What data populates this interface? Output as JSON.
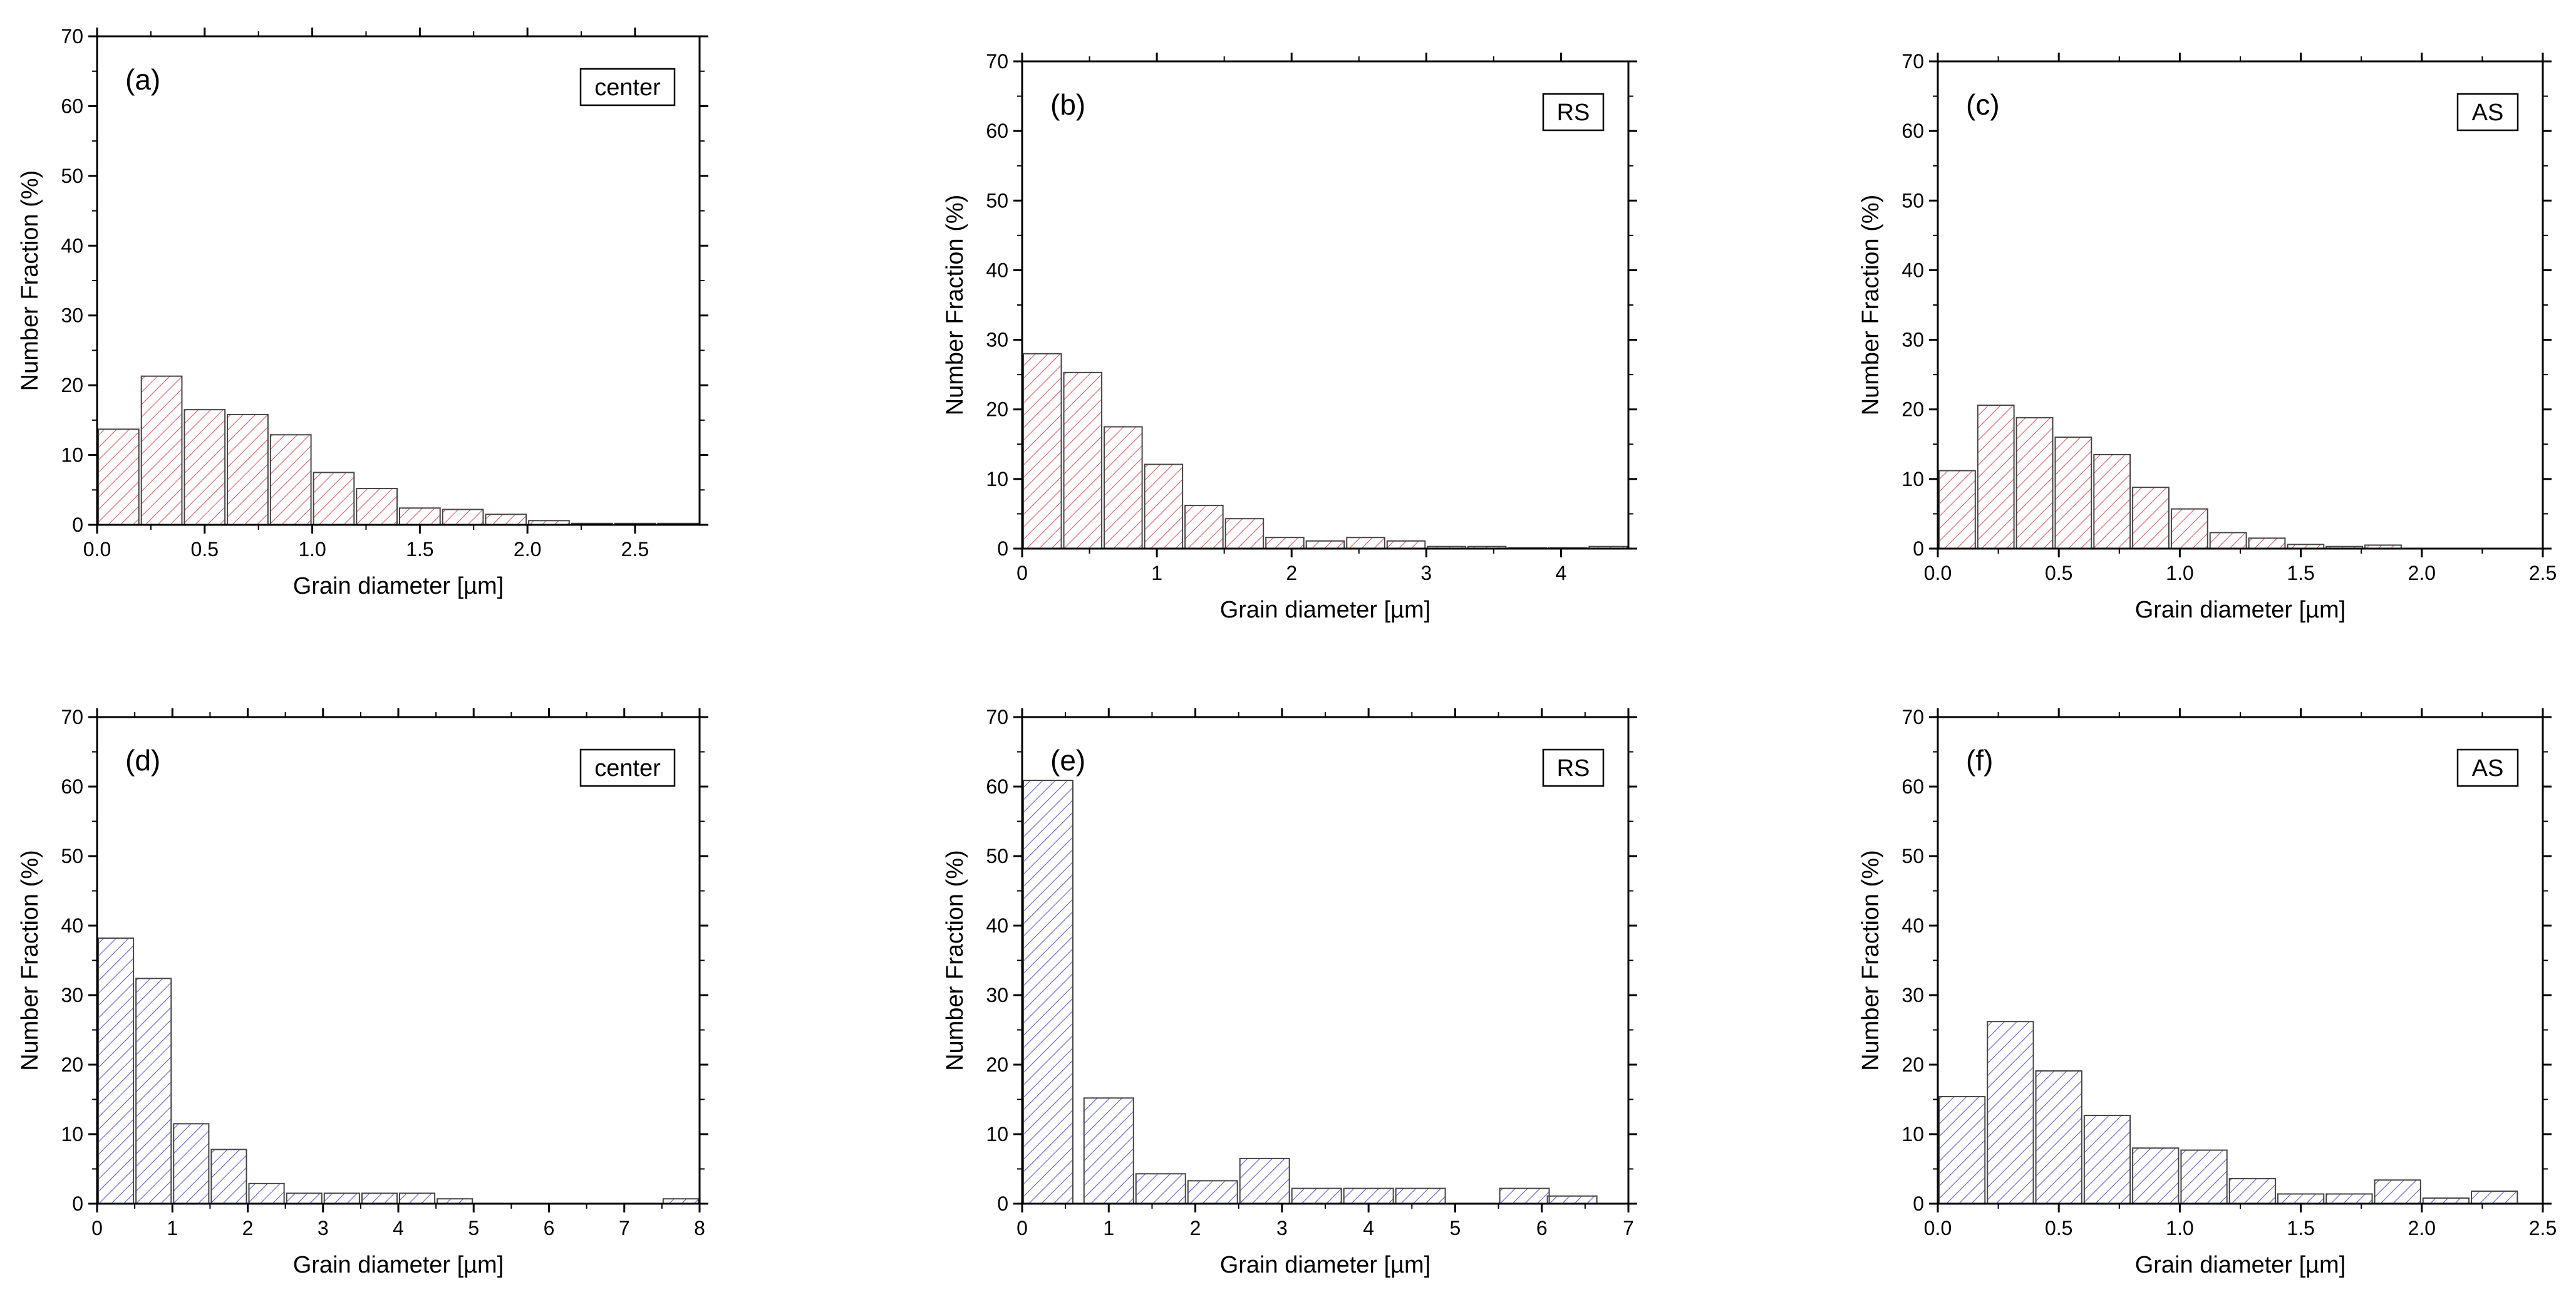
{
  "figure": {
    "xlabel": "Grain diameter [µm]",
    "ylabel": "Number Fraction (%)"
  },
  "chart_data": [
    {
      "type": "bar",
      "panel": "(a)",
      "tag": "center",
      "color": "#e0585e",
      "xlabel": "Grain diameter [µm]",
      "ylabel": "Number Fraction (%)",
      "xlim": [
        0,
        2.8
      ],
      "ylim": [
        0,
        70
      ],
      "xticks": [
        0.0,
        0.5,
        1.0,
        1.5,
        2.0,
        2.5
      ],
      "xtick_labels": [
        "0.0",
        "0.5",
        "1.0",
        "1.5",
        "2.0",
        "2.5"
      ],
      "yticks": [
        0,
        10,
        20,
        30,
        40,
        50,
        60,
        70
      ],
      "bin_width": 0.2,
      "x": [
        0.1,
        0.3,
        0.5,
        0.7,
        0.9,
        1.1,
        1.3,
        1.5,
        1.7,
        1.9,
        2.1,
        2.3,
        2.5,
        2.7
      ],
      "values": [
        13.7,
        21.3,
        16.5,
        15.8,
        12.9,
        7.5,
        5.2,
        2.4,
        2.2,
        1.5,
        0.6,
        0.2,
        0.2,
        0.2
      ]
    },
    {
      "type": "bar",
      "panel": "(b)",
      "tag": "RS",
      "color": "#e0585e",
      "xlabel": "Grain diameter [µm]",
      "ylabel": "Number Fraction (%)",
      "xlim": [
        0,
        4.5
      ],
      "ylim": [
        0,
        70
      ],
      "xticks": [
        0,
        1,
        2,
        3,
        4
      ],
      "xtick_labels": [
        "0",
        "1",
        "2",
        "3",
        "4"
      ],
      "yticks": [
        0,
        10,
        20,
        30,
        40,
        50,
        60,
        70
      ],
      "bin_width": 0.3,
      "x": [
        0.15,
        0.45,
        0.75,
        1.05,
        1.35,
        1.65,
        1.95,
        2.25,
        2.55,
        2.85,
        3.15,
        3.45,
        3.75,
        4.05,
        4.35
      ],
      "values": [
        28.0,
        25.3,
        17.5,
        12.1,
        6.2,
        4.3,
        1.6,
        1.1,
        1.6,
        1.1,
        0.3,
        0.3,
        0.1,
        0.1,
        0.3
      ]
    },
    {
      "type": "bar",
      "panel": "(c)",
      "tag": "AS",
      "color": "#e0585e",
      "xlabel": "Grain diameter [µm]",
      "ylabel": "Number Fraction (%)",
      "xlim": [
        0,
        2.5
      ],
      "ylim": [
        0,
        70
      ],
      "xticks": [
        0.0,
        0.5,
        1.0,
        1.5,
        2.0,
        2.5
      ],
      "xtick_labels": [
        "0.0",
        "0.5",
        "1.0",
        "1.5",
        "2.0",
        "2.5"
      ],
      "yticks": [
        0,
        10,
        20,
        30,
        40,
        50,
        60,
        70
      ],
      "bin_width": 0.16,
      "x": [
        0.08,
        0.24,
        0.4,
        0.56,
        0.72,
        0.88,
        1.04,
        1.2,
        1.36,
        1.52,
        1.68,
        1.84
      ],
      "values": [
        11.2,
        20.6,
        18.8,
        16.0,
        13.5,
        8.8,
        5.7,
        2.3,
        1.5,
        0.6,
        0.3,
        0.5
      ]
    },
    {
      "type": "bar",
      "panel": "(d)",
      "tag": "center",
      "color": "#5a5ad8",
      "xlabel": "Grain diameter [µm]",
      "ylabel": "Number Fraction (%)",
      "xlim": [
        0,
        8
      ],
      "ylim": [
        0,
        70
      ],
      "xticks": [
        0,
        1,
        2,
        3,
        4,
        5,
        6,
        7,
        8
      ],
      "xtick_labels": [
        "0",
        "1",
        "2",
        "3",
        "4",
        "5",
        "6",
        "7",
        "8"
      ],
      "yticks": [
        0,
        10,
        20,
        30,
        40,
        50,
        60,
        70
      ],
      "bin_width": 0.5,
      "x": [
        0.25,
        0.75,
        1.25,
        1.75,
        2.25,
        2.75,
        3.25,
        3.75,
        4.25,
        4.75,
        7.75
      ],
      "values": [
        38.2,
        32.4,
        11.5,
        7.8,
        2.9,
        1.5,
        1.5,
        1.5,
        1.5,
        0.7,
        0.7
      ]
    },
    {
      "type": "bar",
      "panel": "(e)",
      "tag": "RS",
      "color": "#5a5ad8",
      "xlabel": "Grain diameter [µm]",
      "ylabel": "Number Fraction (%)",
      "xlim": [
        0,
        7
      ],
      "ylim": [
        0,
        70
      ],
      "xticks": [
        0,
        1,
        2,
        3,
        4,
        5,
        6,
        7
      ],
      "xtick_labels": [
        "0",
        "1",
        "2",
        "3",
        "4",
        "5",
        "6",
        "7"
      ],
      "yticks": [
        0,
        10,
        20,
        30,
        40,
        50,
        60,
        70
      ],
      "bin_width": 0.6,
      "x": [
        0.3,
        1.0,
        1.6,
        2.2,
        2.8,
        3.4,
        4.0,
        4.6,
        5.8,
        6.35
      ],
      "values": [
        60.9,
        15.2,
        4.3,
        3.3,
        6.5,
        2.2,
        2.2,
        2.2,
        2.2,
        1.1
      ]
    },
    {
      "type": "bar",
      "panel": "(f)",
      "tag": "AS",
      "color": "#5a5ad8",
      "xlabel": "Grain diameter [µm]",
      "ylabel": "Number Fraction (%)",
      "xlim": [
        0,
        2.5
      ],
      "ylim": [
        0,
        70
      ],
      "xticks": [
        0.0,
        0.5,
        1.0,
        1.5,
        2.0,
        2.5
      ],
      "xtick_labels": [
        "0.0",
        "0.5",
        "1.0",
        "1.5",
        "2.0",
        "2.5"
      ],
      "yticks": [
        0,
        10,
        20,
        30,
        40,
        50,
        60,
        70
      ],
      "bin_width": 0.2,
      "x": [
        0.1,
        0.3,
        0.5,
        0.7,
        0.9,
        1.1,
        1.3,
        1.5,
        1.7,
        1.9,
        2.1,
        2.3
      ],
      "values": [
        15.4,
        26.2,
        19.1,
        12.7,
        8.0,
        7.7,
        3.6,
        1.4,
        1.4,
        3.4,
        0.8,
        1.8
      ]
    }
  ]
}
